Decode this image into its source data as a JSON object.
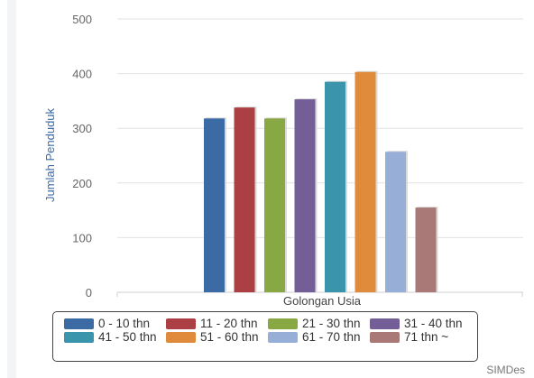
{
  "chart_data": {
    "type": "bar",
    "xlabel": "Golongan Usia",
    "ylabel": "Jumlah Penduduk",
    "ylim": [
      0,
      500
    ],
    "yticks": [
      0,
      100,
      200,
      300,
      400,
      500
    ],
    "grid": true,
    "legend_position": "bottom",
    "series": [
      {
        "name": "0 - 10 thn",
        "value": 318,
        "color": "#3b6aa5"
      },
      {
        "name": "11 - 20 thn",
        "value": 338,
        "color": "#ab3f43"
      },
      {
        "name": "21 - 30 thn",
        "value": 318,
        "color": "#88a843"
      },
      {
        "name": "31 - 40 thn",
        "value": 353,
        "color": "#735e98"
      },
      {
        "name": "41 - 50 thn",
        "value": 385,
        "color": "#3a95ac"
      },
      {
        "name": "51 - 60 thn",
        "value": 403,
        "color": "#e08a3c"
      },
      {
        "name": "61 - 70 thn",
        "value": 257,
        "color": "#97aed6"
      },
      {
        "name": "71 thn ~",
        "value": 155,
        "color": "#a87977"
      }
    ]
  },
  "watermark": "SIMDes"
}
